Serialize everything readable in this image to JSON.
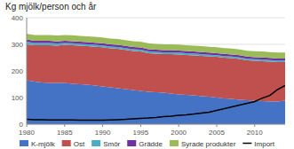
{
  "chart_data": {
    "type": "area",
    "title": "Kg mjölk/person och år",
    "x": [
      1980,
      1981,
      1982,
      1983,
      1984,
      1985,
      1986,
      1987,
      1988,
      1989,
      1990,
      1991,
      1992,
      1993,
      1994,
      1995,
      1996,
      1997,
      1998,
      1999,
      2000,
      2001,
      2002,
      2003,
      2004,
      2005,
      2006,
      2007,
      2008,
      2009,
      2010,
      2011,
      2012,
      2013,
      2014
    ],
    "stacked": true,
    "series": [
      {
        "name": "K-mjölk",
        "color": "#4472c4",
        "type": "area",
        "values": [
          165,
          160,
          157,
          155,
          155,
          155,
          152,
          150,
          148,
          145,
          142,
          138,
          135,
          132,
          128,
          125,
          122,
          120,
          118,
          115,
          112,
          110,
          108,
          105,
          103,
          100,
          97,
          95,
          92,
          90,
          88,
          87,
          85,
          85,
          88
        ]
      },
      {
        "name": "Ost",
        "color": "#c0504d",
        "type": "area",
        "values": [
          135,
          137,
          140,
          142,
          140,
          143,
          145,
          145,
          145,
          146,
          147,
          147,
          148,
          147,
          147,
          148,
          145,
          145,
          145,
          148,
          150,
          150,
          150,
          152,
          152,
          153,
          153,
          153,
          153,
          150,
          150,
          150,
          150,
          148,
          145
        ]
      },
      {
        "name": "Smör",
        "color": "#4bacc6",
        "type": "area",
        "values": [
          10,
          8,
          8,
          8,
          8,
          7,
          7,
          7,
          7,
          7,
          7,
          7,
          7,
          7,
          7,
          7,
          7,
          7,
          7,
          7,
          7,
          7,
          7,
          6,
          6,
          6,
          6,
          6,
          6,
          6,
          6,
          6,
          6,
          6,
          6
        ]
      },
      {
        "name": "Grädde",
        "color": "#7030a0",
        "type": "area",
        "values": [
          8,
          8,
          8,
          8,
          8,
          8,
          8,
          8,
          8,
          8,
          8,
          8,
          8,
          8,
          8,
          8,
          8,
          8,
          8,
          8,
          8,
          8,
          8,
          8,
          8,
          8,
          8,
          8,
          8,
          8,
          8,
          8,
          8,
          8,
          8
        ]
      },
      {
        "name": "Syrade produkter",
        "color": "#9bbb59",
        "type": "area",
        "values": [
          22,
          22,
          22,
          22,
          22,
          22,
          22,
          22,
          22,
          22,
          22,
          22,
          22,
          22,
          22,
          22,
          22,
          22,
          22,
          22,
          22,
          22,
          22,
          22,
          22,
          22,
          22,
          22,
          22,
          22,
          22,
          22,
          22,
          22,
          22
        ]
      },
      {
        "name": "Import",
        "color": "#000000",
        "type": "line",
        "values": [
          18,
          17,
          17,
          16,
          16,
          16,
          16,
          15,
          15,
          15,
          15,
          16,
          17,
          18,
          20,
          22,
          23,
          25,
          28,
          30,
          33,
          35,
          38,
          42,
          45,
          52,
          58,
          65,
          72,
          78,
          85,
          98,
          108,
          130,
          145
        ]
      }
    ],
    "xlim": [
      1980,
      2014
    ],
    "xticks": [
      1980,
      1985,
      1990,
      1995,
      2000,
      2005,
      2010
    ],
    "ylim": [
      0,
      400
    ],
    "yticks": [
      0,
      100,
      200,
      300,
      400
    ],
    "grid": true
  }
}
